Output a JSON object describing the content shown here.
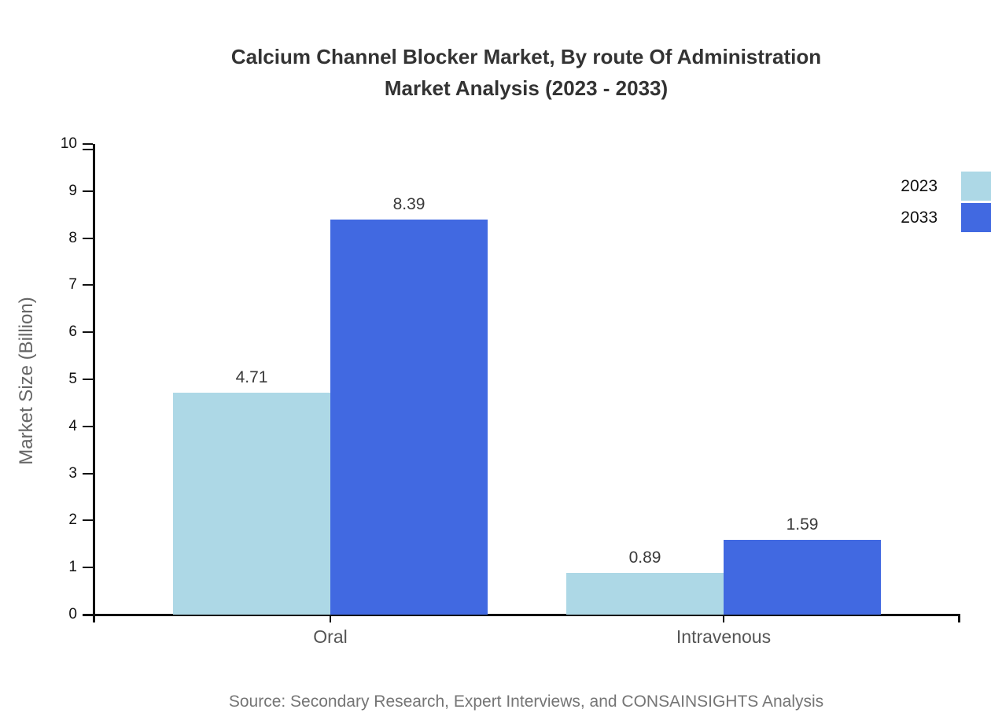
{
  "header": {
    "title_line1": "Calcium Channel Blocker Market, By route Of Administration",
    "title_line2": "Market Analysis (2023 - 2033)"
  },
  "chart_data": {
    "type": "bar",
    "title": "Calcium Channel Blocker Market, By route Of Administration Market Analysis (2023 - 2033)",
    "categories": [
      "Oral",
      "Intravenous"
    ],
    "series": [
      {
        "name": "2023",
        "color": "#ADD8E6",
        "values": [
          4.71,
          0.89
        ]
      },
      {
        "name": "2033",
        "color": "#4169E1",
        "values": [
          8.39,
          1.59
        ]
      }
    ],
    "value_labels": [
      [
        "4.71",
        "0.89"
      ],
      [
        "8.39",
        "1.59"
      ]
    ],
    "xlabel": "",
    "ylabel": "Market Size (Billion)",
    "ylim": [
      0,
      10
    ],
    "ytick_step": 1,
    "grid": false,
    "legend_position": "top-right"
  },
  "footer": {
    "source": "Source: Secondary Research, Expert Interviews, and CONSAINSIGHTS Analysis"
  },
  "colors": {
    "series_2023": "#ADD8E6",
    "series_2033": "#4169E1",
    "axis": "#111111",
    "title_text": "#333333",
    "value_label_text": "#3a3a3a",
    "muted_text": "#666666",
    "source_text": "#757575"
  }
}
